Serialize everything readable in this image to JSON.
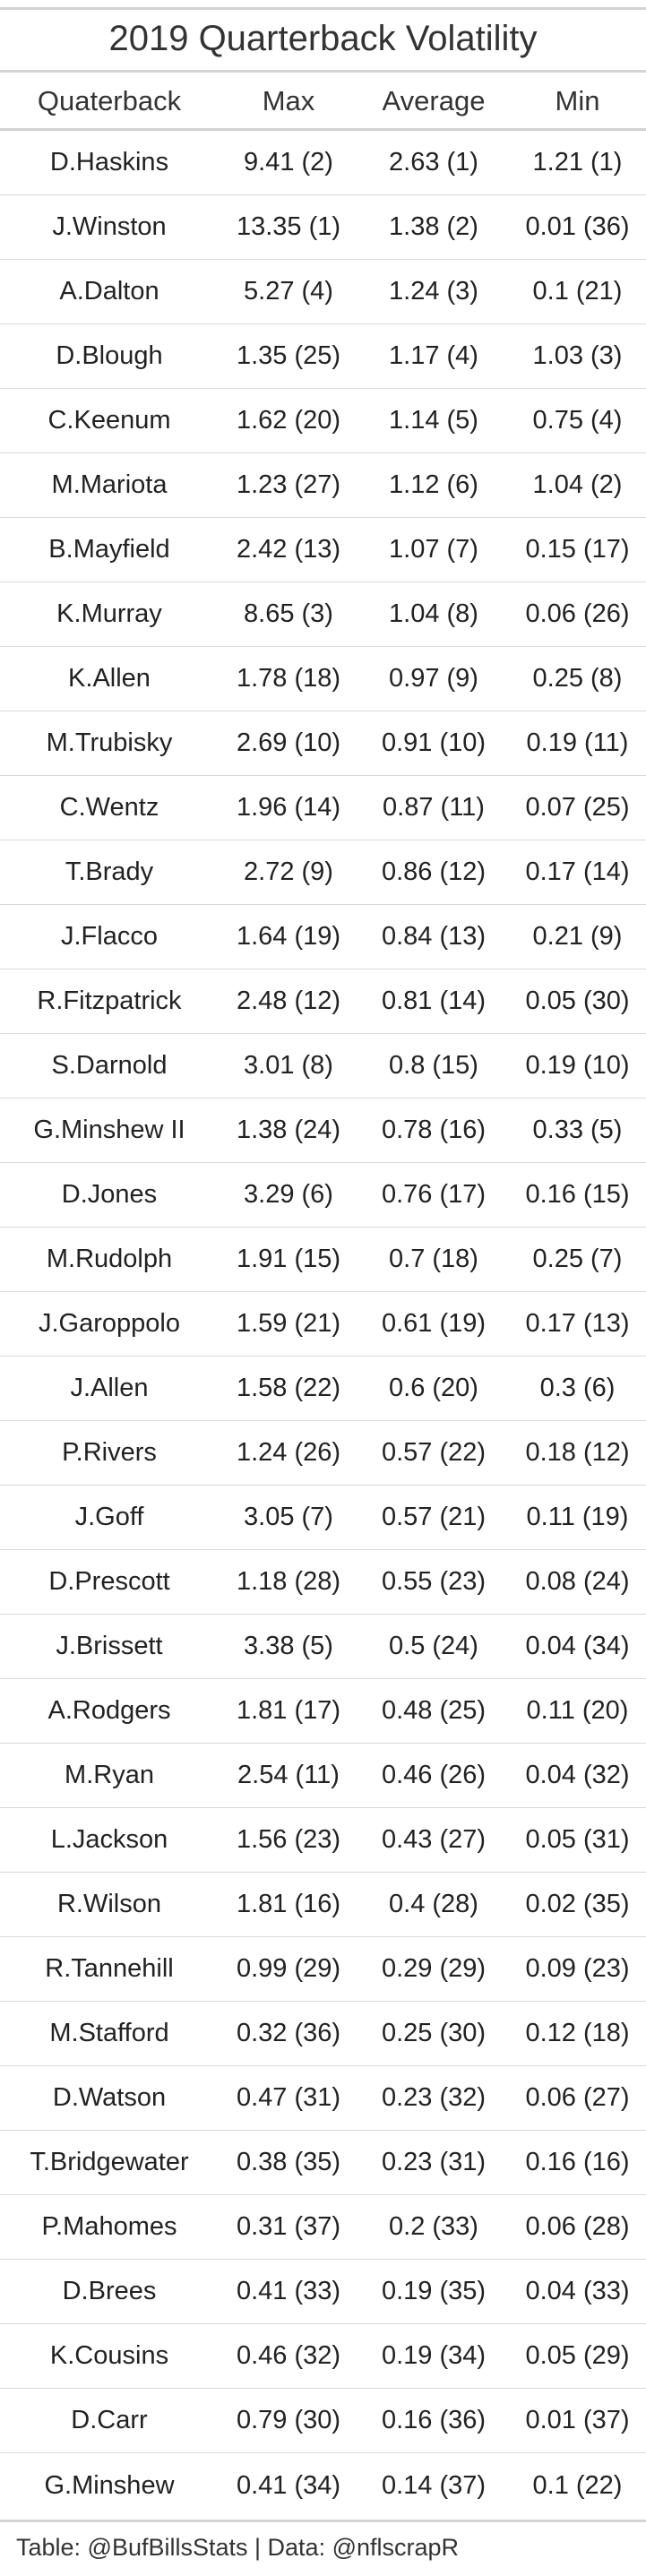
{
  "table": {
    "title": "2019 Quarterback Volatility",
    "columns": [
      "Quaterback",
      "Max",
      "Average",
      "Min"
    ],
    "rows": [
      [
        "D.Haskins",
        "9.41 (2)",
        "2.63 (1)",
        "1.21 (1)"
      ],
      [
        "J.Winston",
        "13.35 (1)",
        "1.38 (2)",
        "0.01 (36)"
      ],
      [
        "A.Dalton",
        "5.27 (4)",
        "1.24 (3)",
        "0.1 (21)"
      ],
      [
        "D.Blough",
        "1.35 (25)",
        "1.17 (4)",
        "1.03 (3)"
      ],
      [
        "C.Keenum",
        "1.62 (20)",
        "1.14 (5)",
        "0.75 (4)"
      ],
      [
        "M.Mariota",
        "1.23 (27)",
        "1.12 (6)",
        "1.04 (2)"
      ],
      [
        "B.Mayfield",
        "2.42 (13)",
        "1.07 (7)",
        "0.15 (17)"
      ],
      [
        "K.Murray",
        "8.65 (3)",
        "1.04 (8)",
        "0.06 (26)"
      ],
      [
        "K.Allen",
        "1.78 (18)",
        "0.97 (9)",
        "0.25 (8)"
      ],
      [
        "M.Trubisky",
        "2.69 (10)",
        "0.91 (10)",
        "0.19 (11)"
      ],
      [
        "C.Wentz",
        "1.96 (14)",
        "0.87 (11)",
        "0.07 (25)"
      ],
      [
        "T.Brady",
        "2.72 (9)",
        "0.86 (12)",
        "0.17 (14)"
      ],
      [
        "J.Flacco",
        "1.64 (19)",
        "0.84 (13)",
        "0.21 (9)"
      ],
      [
        "R.Fitzpatrick",
        "2.48 (12)",
        "0.81 (14)",
        "0.05 (30)"
      ],
      [
        "S.Darnold",
        "3.01 (8)",
        "0.8 (15)",
        "0.19 (10)"
      ],
      [
        "G.Minshew II",
        "1.38 (24)",
        "0.78 (16)",
        "0.33 (5)"
      ],
      [
        "D.Jones",
        "3.29 (6)",
        "0.76 (17)",
        "0.16 (15)"
      ],
      [
        "M.Rudolph",
        "1.91 (15)",
        "0.7 (18)",
        "0.25 (7)"
      ],
      [
        "J.Garoppolo",
        "1.59 (21)",
        "0.61 (19)",
        "0.17 (13)"
      ],
      [
        "J.Allen",
        "1.58 (22)",
        "0.6 (20)",
        "0.3 (6)"
      ],
      [
        "P.Rivers",
        "1.24 (26)",
        "0.57 (22)",
        "0.18 (12)"
      ],
      [
        "J.Goff",
        "3.05 (7)",
        "0.57 (21)",
        "0.11 (19)"
      ],
      [
        "D.Prescott",
        "1.18 (28)",
        "0.55 (23)",
        "0.08 (24)"
      ],
      [
        "J.Brissett",
        "3.38 (5)",
        "0.5 (24)",
        "0.04 (34)"
      ],
      [
        "A.Rodgers",
        "1.81 (17)",
        "0.48 (25)",
        "0.11 (20)"
      ],
      [
        "M.Ryan",
        "2.54 (11)",
        "0.46 (26)",
        "0.04 (32)"
      ],
      [
        "L.Jackson",
        "1.56 (23)",
        "0.43 (27)",
        "0.05 (31)"
      ],
      [
        "R.Wilson",
        "1.81 (16)",
        "0.4 (28)",
        "0.02 (35)"
      ],
      [
        "R.Tannehill",
        "0.99 (29)",
        "0.29 (29)",
        "0.09 (23)"
      ],
      [
        "M.Stafford",
        "0.32 (36)",
        "0.25 (30)",
        "0.12 (18)"
      ],
      [
        "D.Watson",
        "0.47 (31)",
        "0.23 (32)",
        "0.06 (27)"
      ],
      [
        "T.Bridgewater",
        "0.38 (35)",
        "0.23 (31)",
        "0.16 (16)"
      ],
      [
        "P.Mahomes",
        "0.31 (37)",
        "0.2 (33)",
        "0.06 (28)"
      ],
      [
        "D.Brees",
        "0.41 (33)",
        "0.19 (35)",
        "0.04 (33)"
      ],
      [
        "K.Cousins",
        "0.46 (32)",
        "0.19 (34)",
        "0.05 (29)"
      ],
      [
        "D.Carr",
        "0.79 (30)",
        "0.16 (36)",
        "0.01 (37)"
      ],
      [
        "G.Minshew",
        "0.41 (34)",
        "0.14 (37)",
        "0.1 (22)"
      ]
    ],
    "footer": "Table: @BufBillsStats | Data: @nflscrapR"
  }
}
